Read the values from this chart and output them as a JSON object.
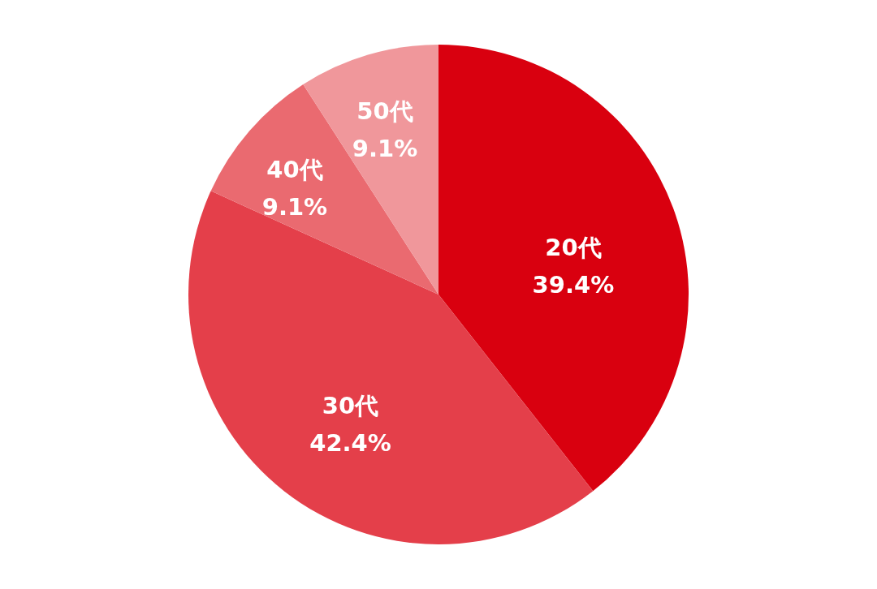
{
  "chart_data": {
    "type": "pie",
    "categories": [
      "20代",
      "30代",
      "40代",
      "50代"
    ],
    "values": [
      39.4,
      42.4,
      9.1,
      9.1
    ],
    "value_labels": [
      "39.4%",
      "42.4%",
      "9.1%",
      "9.1%"
    ],
    "colors": [
      "#d9000f",
      "#e43f4a",
      "#ea6a70",
      "#f0979b"
    ]
  }
}
